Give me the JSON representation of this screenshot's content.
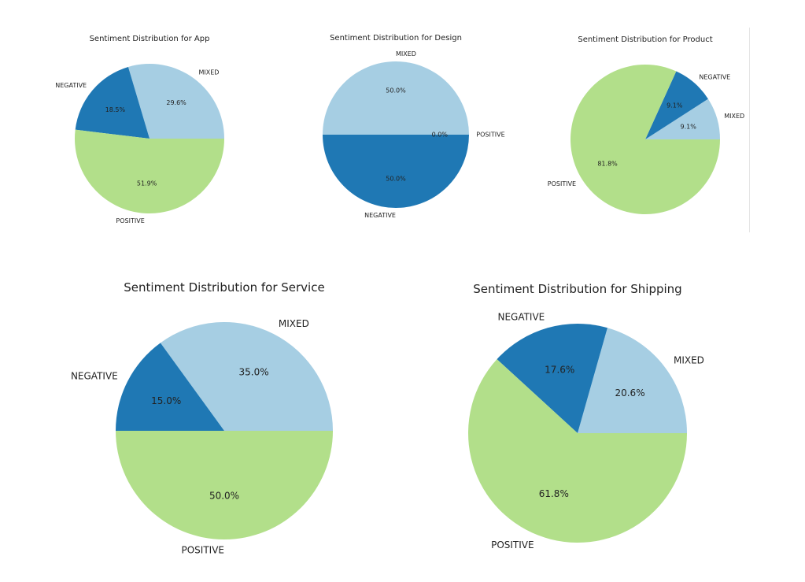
{
  "chart_data": [
    {
      "type": "pie",
      "title": "Sentiment Distribution for App",
      "labels": [
        "MIXED",
        "NEGATIVE",
        "POSITIVE"
      ],
      "values": [
        29.6,
        18.5,
        51.9
      ],
      "value_labels": [
        "29.6%",
        "18.5%",
        "51.9%"
      ],
      "colors": [
        "#a6cee3",
        "#1f78b4",
        "#b2df8a"
      ],
      "start_angle": 0,
      "direction": "counterclockwise"
    },
    {
      "type": "pie",
      "title": "Sentiment Distribution for Design",
      "labels": [
        "MIXED",
        "NEGATIVE",
        "POSITIVE"
      ],
      "values": [
        50.0,
        50.0,
        0.0
      ],
      "value_labels": [
        "50.0%",
        "50.0%",
        "0.0%"
      ],
      "colors": [
        "#a6cee3",
        "#1f78b4",
        "#b2df8a"
      ],
      "start_angle": 0,
      "direction": "counterclockwise"
    },
    {
      "type": "pie",
      "title": "Sentiment Distribution for Product",
      "labels": [
        "MIXED",
        "NEGATIVE",
        "POSITIVE"
      ],
      "values": [
        9.1,
        9.1,
        81.8
      ],
      "value_labels": [
        "9.1%",
        "9.1%",
        "81.8%"
      ],
      "colors": [
        "#a6cee3",
        "#1f78b4",
        "#b2df8a"
      ],
      "start_angle": 0,
      "direction": "counterclockwise"
    },
    {
      "type": "pie",
      "title": "Sentiment Distribution for Service",
      "labels": [
        "MIXED",
        "NEGATIVE",
        "POSITIVE"
      ],
      "values": [
        35.0,
        15.0,
        50.0
      ],
      "value_labels": [
        "35.0%",
        "15.0%",
        "50.0%"
      ],
      "colors": [
        "#a6cee3",
        "#1f78b4",
        "#b2df8a"
      ],
      "start_angle": 0,
      "direction": "counterclockwise"
    },
    {
      "type": "pie",
      "title": "Sentiment Distribution for Shipping",
      "labels": [
        "MIXED",
        "NEGATIVE",
        "POSITIVE"
      ],
      "values": [
        20.6,
        17.6,
        61.8
      ],
      "value_labels": [
        "20.6%",
        "17.6%",
        "61.8%"
      ],
      "colors": [
        "#a6cee3",
        "#1f78b4",
        "#b2df8a"
      ],
      "start_angle": 0,
      "direction": "counterclockwise"
    }
  ]
}
